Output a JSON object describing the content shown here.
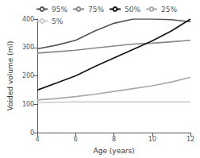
{
  "chart_data": {
    "type": "line",
    "title": "",
    "xlabel": "Age (years)",
    "ylabel": "Voided volume (ml)",
    "x": [
      4,
      5,
      6,
      7,
      8,
      9,
      10,
      11,
      12
    ],
    "series": [
      {
        "name": "95%",
        "color": "#555555",
        "values": [
          295,
          308,
          325,
          358,
          385,
          400,
          400,
          398,
          390
        ]
      },
      {
        "name": "75%",
        "color": "#888888",
        "values": [
          280,
          285,
          290,
          298,
          305,
          312,
          315,
          320,
          325
        ]
      },
      {
        "name": "50%",
        "color": "#111111",
        "values": [
          150,
          175,
          200,
          233,
          263,
          293,
          323,
          358,
          400
        ]
      },
      {
        "name": "25%",
        "color": "#aaaaaa",
        "values": [
          115,
          120,
          127,
          135,
          145,
          155,
          165,
          178,
          195
        ]
      },
      {
        "name": "5%",
        "color": "#cccccc",
        "values": [
          105,
          107,
          108,
          108,
          108,
          108,
          108,
          108,
          108
        ]
      }
    ],
    "xlim": [
      4,
      12
    ],
    "xticks": [
      4,
      6,
      8,
      10,
      12
    ],
    "ylim": [
      0,
      400
    ],
    "yticks": [
      0,
      100,
      200,
      300,
      400
    ],
    "grid": false,
    "legend": "upper left"
  }
}
